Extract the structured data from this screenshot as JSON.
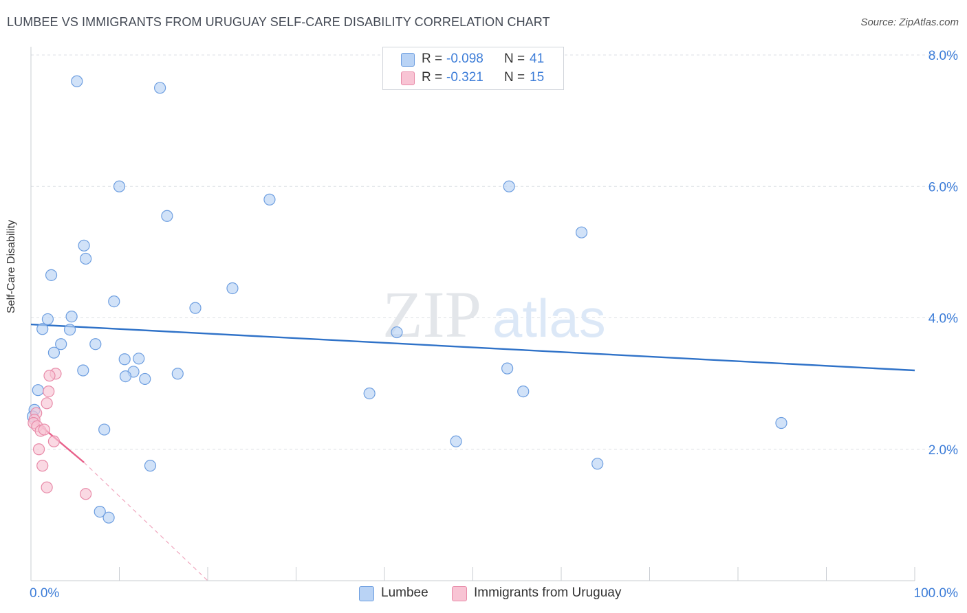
{
  "header": {
    "title": "LUMBEE VS IMMIGRANTS FROM URUGUAY SELF-CARE DISABILITY CORRELATION CHART",
    "source": "Source: ZipAtlas.com"
  },
  "watermark": {
    "zip": "ZIP",
    "atlas": "atlas"
  },
  "legend": {
    "rows": [
      {
        "r_label": "R =",
        "r_value": "-0.098",
        "n_label": "N =",
        "n_value": "41"
      },
      {
        "r_label": "R =",
        "r_value": "-0.321",
        "n_label": "N =",
        "n_value": "15"
      }
    ]
  },
  "colors": {
    "lumbee_fill": "#b9d3f5",
    "lumbee_stroke": "#6d9ee0",
    "lumbee_line": "#2f72c8",
    "uruguay_fill": "#f8c4d4",
    "uruguay_stroke": "#e88aa8",
    "uruguay_line": "#e8608a",
    "grid": "#dcdfe4",
    "tick_label": "#3d7dd8"
  },
  "chart_data": {
    "type": "scatter",
    "title": "LUMBEE VS IMMIGRANTS FROM URUGUAY SELF-CARE DISABILITY CORRELATION CHART",
    "xlabel": "",
    "ylabel": "Self-Care Disability",
    "xlim": [
      0,
      100
    ],
    "ylim": [
      0,
      8.0
    ],
    "x_tick_labels": [
      "0.0%",
      "100.0%"
    ],
    "y_ticks": [
      2.0,
      4.0,
      6.0,
      8.0
    ],
    "y_tick_labels": [
      "2.0%",
      "4.0%",
      "6.0%",
      "8.0%"
    ],
    "grid": true,
    "legend_position": "bottom",
    "series": [
      {
        "name": "Lumbee",
        "points": [
          [
            5.2,
            7.6
          ],
          [
            14.6,
            7.5
          ],
          [
            10.0,
            6.0
          ],
          [
            27.0,
            5.8
          ],
          [
            54.1,
            6.0
          ],
          [
            15.4,
            5.55
          ],
          [
            62.3,
            5.3
          ],
          [
            6.0,
            5.1
          ],
          [
            6.2,
            4.9
          ],
          [
            2.3,
            4.65
          ],
          [
            22.8,
            4.45
          ],
          [
            9.4,
            4.25
          ],
          [
            18.6,
            4.15
          ],
          [
            1.9,
            3.98
          ],
          [
            4.6,
            4.02
          ],
          [
            1.3,
            3.83
          ],
          [
            4.4,
            3.82
          ],
          [
            41.4,
            3.78
          ],
          [
            3.4,
            3.6
          ],
          [
            7.3,
            3.6
          ],
          [
            2.6,
            3.47
          ],
          [
            10.6,
            3.37
          ],
          [
            12.2,
            3.38
          ],
          [
            5.9,
            3.2
          ],
          [
            11.6,
            3.18
          ],
          [
            16.6,
            3.15
          ],
          [
            10.7,
            3.11
          ],
          [
            12.9,
            3.07
          ],
          [
            53.9,
            3.23
          ],
          [
            0.8,
            2.9
          ],
          [
            38.3,
            2.85
          ],
          [
            55.7,
            2.88
          ],
          [
            0.4,
            2.6
          ],
          [
            8.3,
            2.3
          ],
          [
            84.9,
            2.4
          ],
          [
            48.1,
            2.12
          ],
          [
            13.5,
            1.75
          ],
          [
            64.1,
            1.78
          ],
          [
            7.8,
            1.05
          ],
          [
            8.8,
            0.96
          ],
          [
            0.2,
            2.5
          ]
        ]
      },
      {
        "name": "Immigrants from Uruguay",
        "points": [
          [
            2.8,
            3.15
          ],
          [
            2.1,
            3.12
          ],
          [
            2.0,
            2.88
          ],
          [
            1.8,
            2.7
          ],
          [
            0.6,
            2.55
          ],
          [
            0.4,
            2.45
          ],
          [
            0.3,
            2.4
          ],
          [
            0.7,
            2.35
          ],
          [
            1.1,
            2.28
          ],
          [
            1.5,
            2.3
          ],
          [
            2.6,
            2.12
          ],
          [
            0.9,
            2.0
          ],
          [
            1.3,
            1.75
          ],
          [
            1.8,
            1.42
          ],
          [
            6.2,
            1.32
          ]
        ]
      }
    ],
    "trend_lines": [
      {
        "series": "Lumbee",
        "x": [
          0,
          100
        ],
        "y": [
          3.9,
          3.2
        ]
      },
      {
        "series": "Immigrants from Uruguay",
        "x": [
          0,
          6.0
        ],
        "y": [
          2.48,
          1.8
        ],
        "dashed_extension_x": [
          6.0,
          20.0
        ],
        "dashed_extension_y": [
          1.8,
          0.0
        ]
      }
    ]
  }
}
